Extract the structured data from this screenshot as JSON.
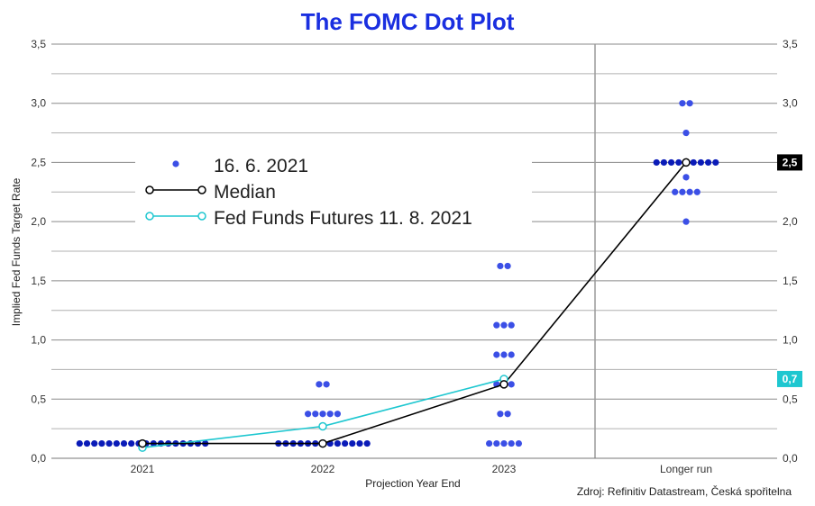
{
  "chart_data": {
    "type": "scatter",
    "title": "The FOMC Dot Plot",
    "ylabel": "Implied Fed Funds Target Rate",
    "xlabel": "Projection Year End",
    "source": "Zdroj: Refinitiv Datastream, Česká spořitelna",
    "categories": [
      "2021",
      "2022",
      "2023",
      "Longer run"
    ],
    "ylim": [
      0,
      3.5
    ],
    "yticks": [
      "0,0",
      "0,5",
      "1,0",
      "1,5",
      "2,0",
      "2,5",
      "3,0",
      "3,5"
    ],
    "grid": true,
    "legend_position": "upper-left",
    "colors": {
      "title": "#1a2fe0",
      "dots": "#3b4fe6",
      "dots_dark": "#0a1bb8",
      "median": "#000000",
      "futures": "#1ec7d0",
      "grid": "#8a8a8a",
      "badge_median": "#000000",
      "badge_futures": "#1ec7d0"
    },
    "dots": {
      "name": "16. 6. 2021",
      "groups": [
        {
          "category": "2021",
          "points": [
            {
              "value": 0.125,
              "count": 18
            }
          ]
        },
        {
          "category": "2022",
          "points": [
            {
              "value": 0.125,
              "count": 13
            },
            {
              "value": 0.375,
              "count": 5
            },
            {
              "value": 0.625,
              "count": 2
            }
          ]
        },
        {
          "category": "2023",
          "points": [
            {
              "value": 0.125,
              "count": 5
            },
            {
              "value": 0.375,
              "count": 2
            },
            {
              "value": 0.625,
              "count": 3
            },
            {
              "value": 0.875,
              "count": 3
            },
            {
              "value": 1.125,
              "count": 3
            },
            {
              "value": 1.625,
              "count": 2
            }
          ]
        },
        {
          "category": "Longer run",
          "points": [
            {
              "value": 2.0,
              "count": 1
            },
            {
              "value": 2.25,
              "count": 4
            },
            {
              "value": 2.375,
              "count": 1
            },
            {
              "value": 2.5,
              "count": 9
            },
            {
              "value": 2.75,
              "count": 1
            },
            {
              "value": 3.0,
              "count": 2
            }
          ]
        }
      ]
    },
    "series": [
      {
        "name": "Median",
        "categories": [
          "2021",
          "2022",
          "2023",
          "Longer run"
        ],
        "values": [
          0.125,
          0.125,
          0.625,
          2.5
        ]
      },
      {
        "name": "Fed Funds Futures 11. 8. 2021",
        "x": [
          "2021",
          "2022",
          "2023"
        ],
        "values": [
          0.09,
          0.27,
          0.67
        ]
      }
    ],
    "right_labels": [
      {
        "text": "2,5",
        "value": 2.5,
        "series": "Median"
      },
      {
        "text": "0,7",
        "value": 0.67,
        "series": "Fed Funds Futures 11. 8. 2021"
      }
    ]
  }
}
